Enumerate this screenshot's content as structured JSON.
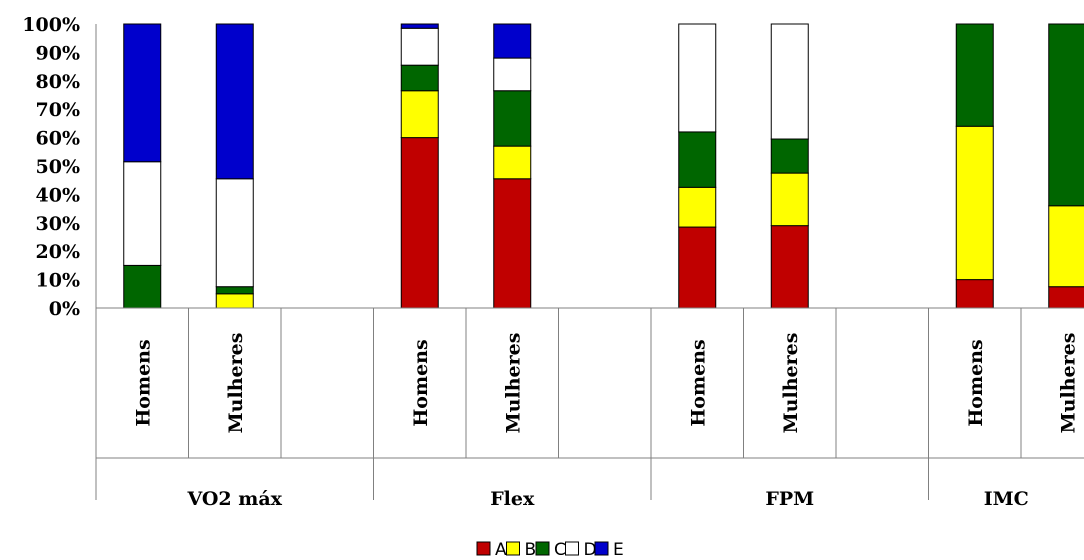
{
  "chart_data": {
    "type": "bar",
    "stacked": true,
    "percent": true,
    "ylim": [
      0,
      100
    ],
    "y_ticks": [
      "0%",
      "10%",
      "20%",
      "30%",
      "40%",
      "50%",
      "60%",
      "70%",
      "80%",
      "90%",
      "100%"
    ],
    "grid": false,
    "legend_position": "bottom",
    "groups": [
      "VO2 máx",
      "Flex",
      "FPM",
      "IMC"
    ],
    "categories": [
      {
        "group": "VO2 máx",
        "label": "Homens"
      },
      {
        "group": "VO2 máx",
        "label": "Mulheres"
      },
      {
        "group": "VO2 máx",
        "label": ""
      },
      {
        "group": "Flex",
        "label": "Homens"
      },
      {
        "group": "Flex",
        "label": "Mulheres"
      },
      {
        "group": "Flex",
        "label": ""
      },
      {
        "group": "FPM",
        "label": "Homens"
      },
      {
        "group": "FPM",
        "label": "Mulheres"
      },
      {
        "group": "FPM",
        "label": ""
      },
      {
        "group": "IMC",
        "label": "Homens"
      },
      {
        "group": "IMC",
        "label": "Mulheres"
      }
    ],
    "series": [
      {
        "name": "A",
        "color": "#c00000",
        "values": [
          0,
          0,
          null,
          60,
          45.5,
          null,
          28.5,
          29,
          null,
          10,
          7.5
        ]
      },
      {
        "name": "B",
        "color": "#ffff00",
        "values": [
          0,
          5,
          null,
          16.5,
          11.5,
          null,
          14,
          18.5,
          null,
          54,
          28.5
        ]
      },
      {
        "name": "C",
        "color": "#006600",
        "values": [
          15,
          2.5,
          null,
          9,
          19.5,
          null,
          19.5,
          12,
          null,
          36,
          64
        ]
      },
      {
        "name": "D",
        "color": "#ffffff",
        "values": [
          36.5,
          38,
          null,
          13,
          11.5,
          null,
          38,
          40.5,
          null,
          0,
          0
        ]
      },
      {
        "name": "E",
        "color": "#0000cc",
        "values": [
          48.5,
          54.5,
          null,
          1.5,
          12,
          null,
          0,
          0,
          null,
          0,
          0
        ]
      }
    ]
  }
}
